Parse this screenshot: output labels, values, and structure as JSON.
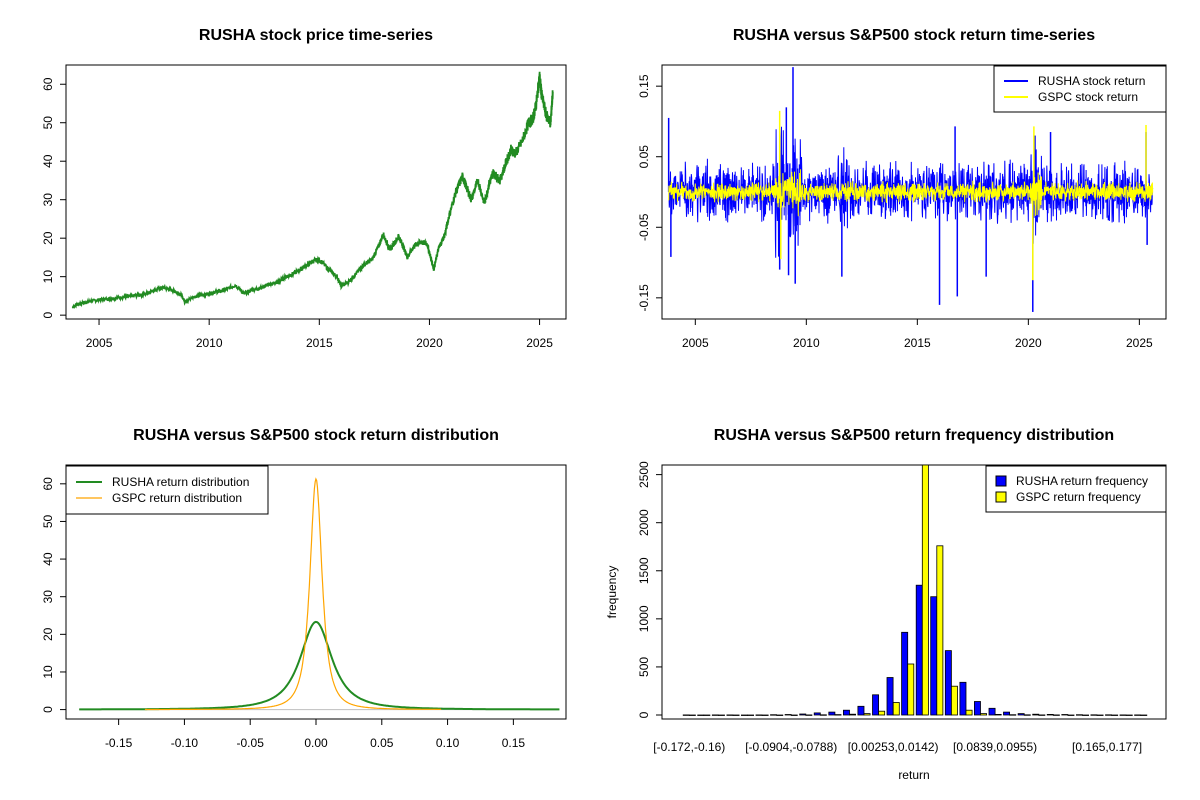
{
  "chart_data": [
    {
      "type": "line",
      "title": "RUSHA stock price time-series",
      "xlabel": "",
      "ylabel": "",
      "xlim": [
        2003.5,
        2026.2
      ],
      "ylim": [
        -1,
        65
      ],
      "xticks": [
        "2005",
        "2010",
        "2015",
        "2020",
        "2025"
      ],
      "yticks": [
        "0",
        "10",
        "20",
        "30",
        "40",
        "50",
        "60"
      ],
      "grid": false,
      "colors": {
        "series": "#228B22"
      },
      "series": [
        {
          "x": [
            2003.8,
            2004.0,
            2004.5,
            2005.0,
            2005.5,
            2006.0,
            2006.5,
            2007.0,
            2007.5,
            2007.9,
            2008.3,
            2008.7,
            2008.9,
            2009.2,
            2009.5,
            2009.9,
            2010.3,
            2010.7,
            2011.2,
            2011.6,
            2011.9,
            2012.3,
            2012.7,
            2013.1,
            2013.5,
            2013.9,
            2014.3,
            2014.7,
            2015.0,
            2015.4,
            2015.8,
            2016.0,
            2016.3,
            2016.7,
            2017.0,
            2017.4,
            2017.7,
            2017.9,
            2018.2,
            2018.6,
            2018.8,
            2019.0,
            2019.3,
            2019.6,
            2019.9,
            2020.1,
            2020.2,
            2020.4,
            2020.7,
            2020.9,
            2021.2,
            2021.5,
            2021.7,
            2021.9,
            2022.2,
            2022.5,
            2022.7,
            2022.9,
            2023.2,
            2023.5,
            2023.7,
            2023.9,
            2024.2,
            2024.5,
            2024.7,
            2024.85,
            2025.0,
            2025.1,
            2025.3,
            2025.5,
            2025.6
          ],
          "values": [
            2,
            2.8,
            3.5,
            4,
            4.3,
            4.6,
            5,
            5.3,
            6.5,
            7.2,
            6.5,
            5.5,
            3.5,
            4.5,
            5,
            5.5,
            6,
            6.5,
            7.8,
            5.5,
            6.5,
            7,
            8,
            8.5,
            10,
            11,
            12.5,
            14,
            14.5,
            12,
            10,
            7.5,
            8.5,
            11,
            13,
            14.5,
            18,
            21,
            17,
            20.5,
            18,
            15,
            18,
            19,
            18.5,
            14,
            12,
            17,
            21,
            26,
            32,
            36,
            33,
            30,
            35,
            29,
            34,
            37,
            35,
            40,
            43,
            42,
            45,
            50,
            51,
            55,
            62,
            57,
            52,
            50,
            58
          ]
        }
      ]
    },
    {
      "type": "line",
      "title": "RUSHA versus S&P500 stock return time-series",
      "xlabel": "",
      "ylabel": "",
      "xlim": [
        2003.5,
        2026.2
      ],
      "ylim": [
        -0.18,
        0.18
      ],
      "xticks": [
        "2005",
        "2010",
        "2015",
        "2020",
        "2025"
      ],
      "yticks": [
        "-0.15",
        "-0.05",
        "0.05",
        "0.15"
      ],
      "grid": false,
      "legend": {
        "position": "top-right"
      },
      "colors": {
        "RUSHA": "#0000FF",
        "GSPC": "#FFFF00"
      },
      "series": [
        {
          "name": "RUSHA stock return",
          "spikes": [
            [
              2003.8,
              0.105
            ],
            [
              2003.9,
              -0.092
            ],
            [
              2008.8,
              -0.11
            ],
            [
              2009.1,
              0.12
            ],
            [
              2009.2,
              -0.118
            ],
            [
              2009.4,
              0.177
            ],
            [
              2009.5,
              -0.13
            ],
            [
              2011.6,
              -0.12
            ],
            [
              2016.0,
              -0.16
            ],
            [
              2016.7,
              0.093
            ],
            [
              2016.8,
              -0.148
            ],
            [
              2018.1,
              -0.12
            ],
            [
              2020.2,
              -0.17
            ],
            [
              2020.3,
              0.08
            ],
            [
              2021.0,
              0.085
            ],
            [
              2025.3,
              0.085
            ],
            [
              2025.35,
              -0.075
            ]
          ],
          "typical_amplitude": 0.035
        },
        {
          "name": "GSPC stock return",
          "spikes": [
            [
              2008.8,
              0.115
            ],
            [
              2008.85,
              -0.095
            ],
            [
              2020.2,
              -0.125
            ],
            [
              2020.25,
              0.093
            ],
            [
              2025.3,
              0.095
            ]
          ],
          "typical_amplitude": 0.012
        }
      ]
    },
    {
      "type": "line",
      "title": "RUSHA versus S&P500 stock return distribution",
      "xlabel": "",
      "ylabel": "",
      "xlim": [
        -0.19,
        0.19
      ],
      "ylim": [
        -2.5,
        65
      ],
      "xticks": [
        "-0.15",
        "-0.10",
        "-0.05",
        "0.00",
        "0.05",
        "0.10",
        "0.15"
      ],
      "yticks": [
        "0",
        "10",
        "20",
        "30",
        "40",
        "50",
        "60"
      ],
      "grid": false,
      "legend": {
        "position": "top-left"
      },
      "colors": {
        "RUSHA": "#228B22",
        "GSPC": "#FFA500",
        "baseline": "#BEBEBE"
      },
      "series": [
        {
          "name": "RUSHA return distribution",
          "peak": 23.3,
          "center": 0.0,
          "xrange": [
            -0.18,
            0.185
          ]
        },
        {
          "name": "GSPC return distribution",
          "peak": 61.3,
          "center": 0.0,
          "xrange": [
            -0.13,
            0.095
          ]
        }
      ]
    },
    {
      "type": "bar",
      "title": "RUSHA versus S&P500 return frequency distribution",
      "xlabel": "return",
      "ylabel": "frequency",
      "ylim": [
        0,
        2600
      ],
      "yticks": [
        "0",
        "500",
        "1000",
        "1500",
        "2000",
        "2500"
      ],
      "xtick_labels": [
        "[-0.172,-0.16)",
        "[-0.0904,-0.0788)",
        "[0.00253,0.0142)",
        "[0.0839,0.0955)",
        "[0.165,0.177]"
      ],
      "legend": {
        "position": "top-right"
      },
      "colors": {
        "RUSHA": "#0000FF",
        "GSPC": "#FFFF00"
      },
      "series": [
        {
          "name": "RUSHA return frequency",
          "values": [
            1,
            0,
            1,
            1,
            0,
            1,
            3,
            5,
            10,
            22,
            30,
            50,
            90,
            210,
            390,
            860,
            1350,
            1230,
            670,
            340,
            140,
            70,
            30,
            15,
            8,
            6,
            5,
            3,
            2,
            2,
            1,
            1
          ]
        },
        {
          "name": "GSPC return frequency",
          "values": [
            0,
            0,
            0,
            0,
            0,
            0,
            0,
            0,
            1,
            2,
            4,
            8,
            15,
            40,
            130,
            530,
            2620,
            1760,
            300,
            50,
            15,
            6,
            3,
            2,
            1,
            1,
            0,
            0,
            0,
            0,
            0,
            0
          ]
        }
      ]
    }
  ]
}
